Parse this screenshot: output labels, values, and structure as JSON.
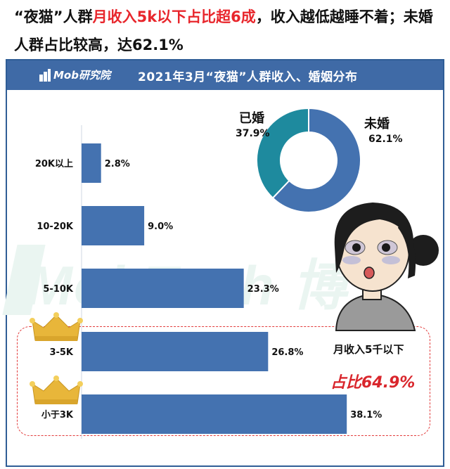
{
  "headline": {
    "part1": "“夜猫”人群",
    "part2": "月收入5k以下占比超6成",
    "part3": "，收入越低越睡不着；未婚人群占比较高，达62.1%"
  },
  "logo": {
    "text": "Mob研究院"
  },
  "watermark": {
    "text": "MobTech 博"
  },
  "chart": {
    "title": "2021年3月“夜猫”人群收入、婚姻分布"
  },
  "note": {
    "line1": "月收入5千以下",
    "line2": "占比64.9%"
  },
  "colors": {
    "bar": "#4472b0",
    "title_bg": "#3f6aa6",
    "pie_married": "#1e8a9e",
    "pie_unmarried": "#4472b0",
    "highlight_red": "#e8262c",
    "crown": "#e8b63a"
  },
  "chart_data": [
    {
      "type": "bar",
      "orientation": "horizontal",
      "categories": [
        "20K以上",
        "10-20K",
        "5-10K",
        "3-5K",
        "小于3K"
      ],
      "values": [
        2.8,
        9.0,
        23.3,
        26.8,
        38.1
      ],
      "labels": [
        "2.8%",
        "9.0%",
        "23.3%",
        "26.8%",
        "38.1%"
      ],
      "xlim": [
        0,
        40
      ],
      "highlighted": [
        "3-5K",
        "小于3K"
      ]
    },
    {
      "type": "pie",
      "style": "donut",
      "categories": [
        "已婚",
        "未婚"
      ],
      "values": [
        37.9,
        62.1
      ],
      "labels": [
        "37.9%",
        "62.1%"
      ]
    }
  ]
}
